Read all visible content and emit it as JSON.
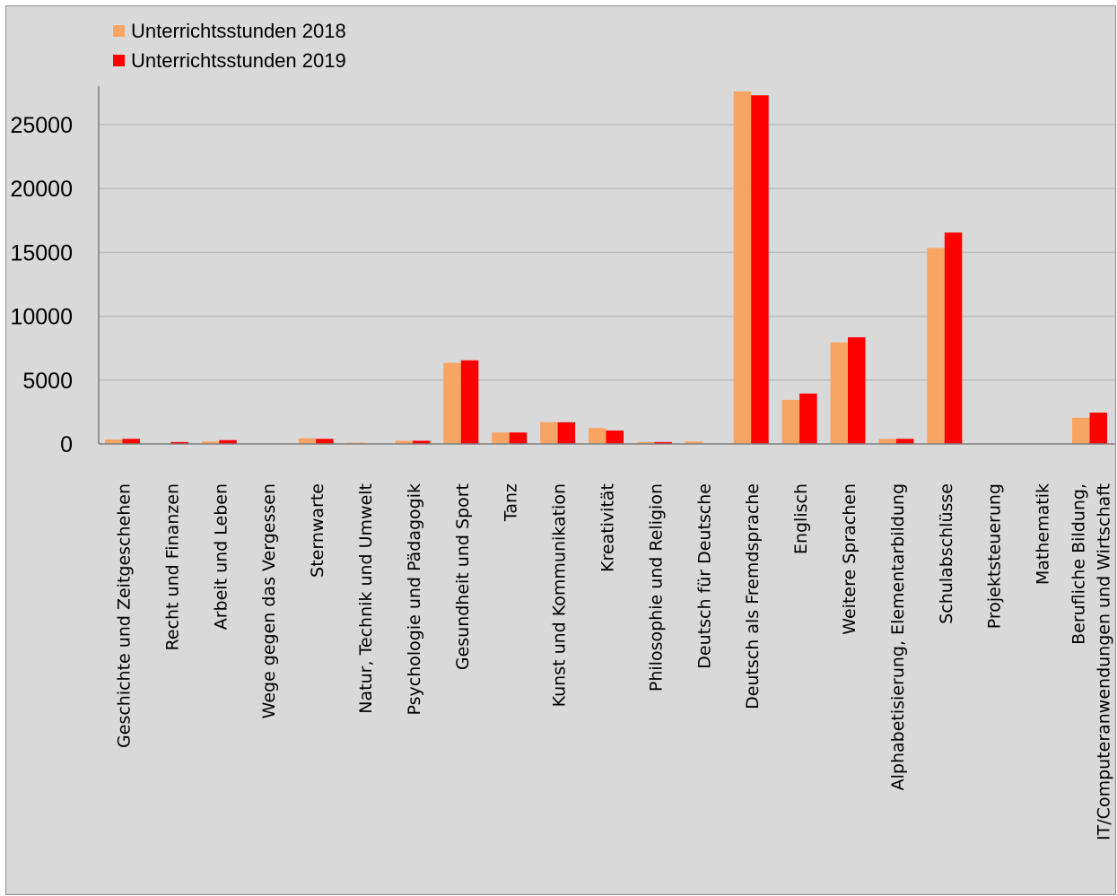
{
  "chart_data": {
    "type": "bar",
    "title": "",
    "xlabel": "",
    "ylabel": "",
    "ylim": [
      0,
      28000
    ],
    "yticks": [
      0,
      5000,
      10000,
      15000,
      20000,
      25000
    ],
    "grid": true,
    "legend_position": "top-left",
    "categories": [
      "Geschichte und Zeitgeschehen",
      "Recht und Finanzen",
      "Arbeit und Leben",
      "Wege gegen das Vergessen",
      "Sternwarte",
      "Natur, Technik und Umwelt",
      "Psychologie und Pädagogik",
      "Gesundheit und Sport",
      "Tanz",
      "Kunst und Kommunikation",
      "Kreativität",
      "Philosophie und Religion",
      "Deutsch für Deutsche",
      "Deutsch als Fremdsprache",
      "Englisch",
      "Weitere Sprachen",
      "Alphabetisierung,  Elementarbildung",
      "Schulabschlüsse",
      "Projektsteuerung",
      "Mathematik",
      "Berufliche Bildung, IT/Computeranwendungen und Wirtschaft"
    ],
    "series": [
      {
        "name": "Unterrichtsstunden 2018",
        "color": "#f8a563",
        "values": [
          350,
          30,
          200,
          20,
          450,
          100,
          250,
          6350,
          900,
          1700,
          1250,
          150,
          200,
          27600,
          3450,
          7950,
          400,
          15350,
          0,
          0,
          2050
        ]
      },
      {
        "name": "Unterrichtsstunden 2019",
        "color": "#ff0000",
        "values": [
          400,
          150,
          300,
          10,
          400,
          20,
          250,
          6550,
          900,
          1700,
          1050,
          150,
          30,
          27300,
          3950,
          8350,
          400,
          16550,
          0,
          0,
          2450
        ]
      }
    ]
  }
}
